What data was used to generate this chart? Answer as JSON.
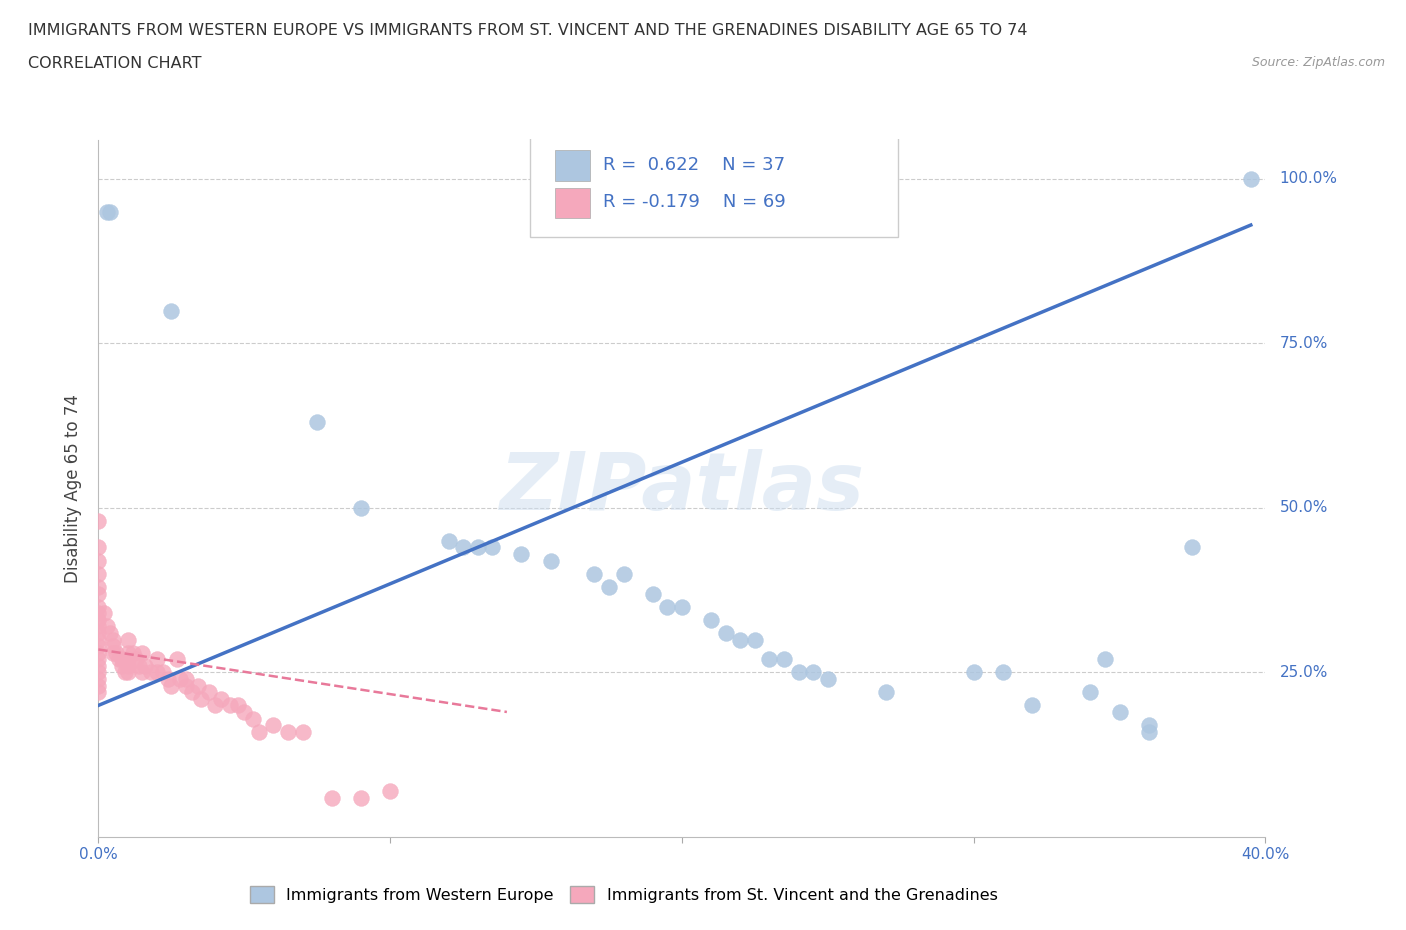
{
  "title_line1": "IMMIGRANTS FROM WESTERN EUROPE VS IMMIGRANTS FROM ST. VINCENT AND THE GRENADINES DISABILITY AGE 65 TO 74",
  "title_line2": "CORRELATION CHART",
  "source_text": "Source: ZipAtlas.com",
  "ylabel": "Disability Age 65 to 74",
  "legend_label1": "Immigrants from Western Europe",
  "legend_label2": "Immigrants from St. Vincent and the Grenadines",
  "R1": 0.622,
  "N1": 37,
  "R2": -0.179,
  "N2": 69,
  "blue_color": "#adc6e0",
  "pink_color": "#f5a8bc",
  "line_blue": "#4472c4",
  "line_pink": "#e8799a",
  "watermark": "ZIPatlas",
  "blue_dots": [
    [
      0.003,
      0.95
    ],
    [
      0.004,
      0.95
    ],
    [
      0.025,
      0.8
    ],
    [
      0.075,
      0.63
    ],
    [
      0.09,
      0.5
    ],
    [
      0.12,
      0.45
    ],
    [
      0.125,
      0.44
    ],
    [
      0.13,
      0.44
    ],
    [
      0.135,
      0.44
    ],
    [
      0.145,
      0.43
    ],
    [
      0.155,
      0.42
    ],
    [
      0.17,
      0.4
    ],
    [
      0.175,
      0.38
    ],
    [
      0.18,
      0.4
    ],
    [
      0.19,
      0.37
    ],
    [
      0.195,
      0.35
    ],
    [
      0.2,
      0.35
    ],
    [
      0.21,
      0.33
    ],
    [
      0.215,
      0.31
    ],
    [
      0.22,
      0.3
    ],
    [
      0.225,
      0.3
    ],
    [
      0.23,
      0.27
    ],
    [
      0.235,
      0.27
    ],
    [
      0.24,
      0.25
    ],
    [
      0.245,
      0.25
    ],
    [
      0.25,
      0.24
    ],
    [
      0.27,
      0.22
    ],
    [
      0.3,
      0.25
    ],
    [
      0.31,
      0.25
    ],
    [
      0.32,
      0.2
    ],
    [
      0.34,
      0.22
    ],
    [
      0.345,
      0.27
    ],
    [
      0.35,
      0.19
    ],
    [
      0.36,
      0.17
    ],
    [
      0.36,
      0.16
    ],
    [
      0.375,
      0.44
    ],
    [
      0.395,
      1.0
    ]
  ],
  "pink_dots": [
    [
      0.0,
      0.48
    ],
    [
      0.0,
      0.44
    ],
    [
      0.0,
      0.42
    ],
    [
      0.0,
      0.4
    ],
    [
      0.0,
      0.38
    ],
    [
      0.0,
      0.37
    ],
    [
      0.0,
      0.35
    ],
    [
      0.0,
      0.34
    ],
    [
      0.0,
      0.33
    ],
    [
      0.0,
      0.32
    ],
    [
      0.0,
      0.31
    ],
    [
      0.0,
      0.3
    ],
    [
      0.0,
      0.29
    ],
    [
      0.0,
      0.28
    ],
    [
      0.0,
      0.27
    ],
    [
      0.0,
      0.26
    ],
    [
      0.0,
      0.25
    ],
    [
      0.0,
      0.24
    ],
    [
      0.0,
      0.23
    ],
    [
      0.0,
      0.22
    ],
    [
      0.002,
      0.34
    ],
    [
      0.003,
      0.32
    ],
    [
      0.004,
      0.31
    ],
    [
      0.005,
      0.3
    ],
    [
      0.005,
      0.29
    ],
    [
      0.005,
      0.28
    ],
    [
      0.006,
      0.28
    ],
    [
      0.007,
      0.27
    ],
    [
      0.008,
      0.27
    ],
    [
      0.008,
      0.26
    ],
    [
      0.009,
      0.25
    ],
    [
      0.01,
      0.3
    ],
    [
      0.01,
      0.28
    ],
    [
      0.01,
      0.27
    ],
    [
      0.01,
      0.26
    ],
    [
      0.01,
      0.25
    ],
    [
      0.012,
      0.28
    ],
    [
      0.013,
      0.27
    ],
    [
      0.014,
      0.26
    ],
    [
      0.015,
      0.25
    ],
    [
      0.015,
      0.28
    ],
    [
      0.016,
      0.26
    ],
    [
      0.018,
      0.25
    ],
    [
      0.02,
      0.27
    ],
    [
      0.02,
      0.25
    ],
    [
      0.022,
      0.25
    ],
    [
      0.024,
      0.24
    ],
    [
      0.025,
      0.23
    ],
    [
      0.027,
      0.27
    ],
    [
      0.028,
      0.24
    ],
    [
      0.03,
      0.23
    ],
    [
      0.03,
      0.24
    ],
    [
      0.032,
      0.22
    ],
    [
      0.034,
      0.23
    ],
    [
      0.035,
      0.21
    ],
    [
      0.038,
      0.22
    ],
    [
      0.04,
      0.2
    ],
    [
      0.042,
      0.21
    ],
    [
      0.045,
      0.2
    ],
    [
      0.048,
      0.2
    ],
    [
      0.05,
      0.19
    ],
    [
      0.053,
      0.18
    ],
    [
      0.055,
      0.16
    ],
    [
      0.06,
      0.17
    ],
    [
      0.065,
      0.16
    ],
    [
      0.07,
      0.16
    ],
    [
      0.08,
      0.06
    ],
    [
      0.09,
      0.06
    ],
    [
      0.1,
      0.07
    ]
  ],
  "xlim": [
    0.0,
    0.4
  ],
  "ylim": [
    0.0,
    1.06
  ],
  "xticks": [
    0.0,
    0.1,
    0.2,
    0.3,
    0.4
  ],
  "xtick_labels": [
    "0.0%",
    "",
    "",
    "",
    "40.0%"
  ],
  "ytick_positions": [
    0.25,
    0.5,
    0.75,
    1.0
  ],
  "ytick_labels": [
    "25.0%",
    "50.0%",
    "75.0%",
    "100.0%"
  ],
  "blue_line_x": [
    0.0,
    0.395
  ],
  "blue_line_y": [
    0.2,
    0.93
  ],
  "pink_line_x": [
    0.0,
    0.14
  ],
  "pink_line_y": [
    0.285,
    0.19
  ]
}
